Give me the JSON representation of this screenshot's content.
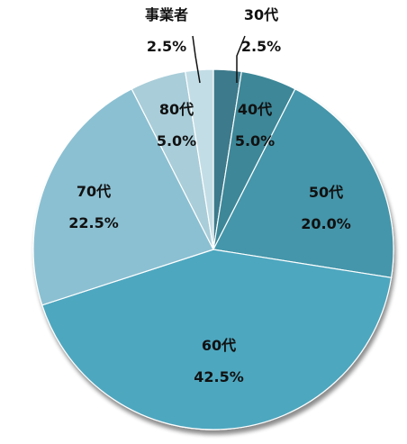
{
  "chart_data": {
    "type": "pie",
    "slices": [
      {
        "label": "30代",
        "value": 2.5,
        "value_text": "2.5%",
        "color": "#3d7a8b"
      },
      {
        "label": "40代",
        "value": 5.0,
        "value_text": "5.0%",
        "color": "#3d8798"
      },
      {
        "label": "50代",
        "value": 20.0,
        "value_text": "20.0%",
        "color": "#4596aa"
      },
      {
        "label": "60代",
        "value": 42.5,
        "value_text": "42.5%",
        "color": "#4ea7bf"
      },
      {
        "label": "70代",
        "value": 22.5,
        "value_text": "22.5%",
        "color": "#8bc0d2"
      },
      {
        "label": "80代",
        "value": 5.0,
        "value_text": "5.0%",
        "color": "#a9cdd9"
      },
      {
        "label": "事業者",
        "value": 2.5,
        "value_text": "2.5%",
        "color": "#c3dde6"
      }
    ],
    "start_angle_deg": 0,
    "direction": "clockwise",
    "data_labels": "category and percent"
  }
}
